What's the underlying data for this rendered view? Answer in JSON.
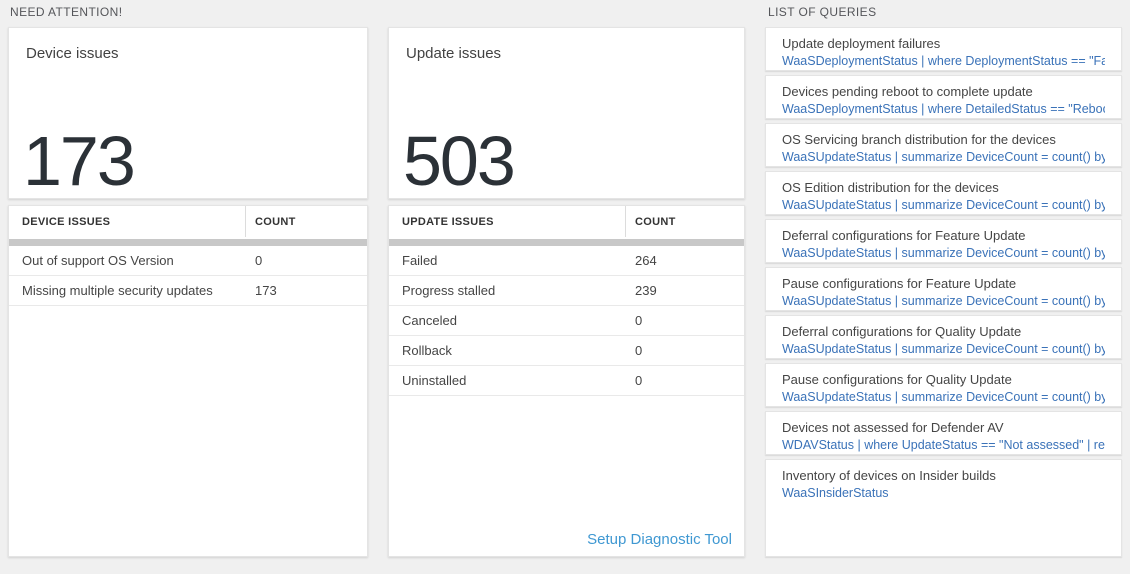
{
  "sections": {
    "need_attention": "NEED ATTENTION!",
    "list_of_queries": "LIST OF QUERIES"
  },
  "device_card": {
    "title": "Device issues",
    "count": "173"
  },
  "device_table": {
    "headers": [
      "DEVICE ISSUES",
      "COUNT"
    ],
    "rows": [
      {
        "label": "Out of support OS Version",
        "count": "0"
      },
      {
        "label": "Missing multiple security updates",
        "count": "173"
      }
    ]
  },
  "update_card": {
    "title": "Update issues",
    "count": "503"
  },
  "update_table": {
    "headers": [
      "UPDATE ISSUES",
      "COUNT"
    ],
    "rows": [
      {
        "label": "Failed",
        "count": "264"
      },
      {
        "label": "Progress stalled",
        "count": "239"
      },
      {
        "label": "Canceled",
        "count": "0"
      },
      {
        "label": "Rollback",
        "count": "0"
      },
      {
        "label": "Uninstalled",
        "count": "0"
      }
    ],
    "footer_link": "Setup Diagnostic Tool"
  },
  "queries": {
    "items": [
      {
        "title": "Update deployment failures",
        "query": "WaaSDeploymentStatus | where DeploymentStatus == \"Failed\" |..."
      },
      {
        "title": "Devices pending reboot to complete update",
        "query": "WaaSDeploymentStatus | where DetailedStatus == \"Reboot pend..."
      },
      {
        "title": "OS Servicing branch distribution for the devices",
        "query": "WaaSUpdateStatus | summarize DeviceCount = count() by OSSer..."
      },
      {
        "title": "OS Edition distribution for the devices",
        "query": "WaaSUpdateStatus | summarize DeviceCount = count() by OSEdit..."
      },
      {
        "title": "Deferral configurations for Feature Update",
        "query": "WaaSUpdateStatus | summarize DeviceCount = count() by Featur..."
      },
      {
        "title": "Pause configurations for Feature Update",
        "query": "WaaSUpdateStatus | summarize DeviceCount = count() by Featur..."
      },
      {
        "title": "Deferral configurations for Quality Update",
        "query": "WaaSUpdateStatus | summarize DeviceCount = count() by Qualit..."
      },
      {
        "title": "Pause configurations for Quality Update",
        "query": "WaaSUpdateStatus | summarize DeviceCount = count() by Qualit..."
      },
      {
        "title": "Devices not assessed for Defender AV",
        "query": "WDAVStatus | where UpdateStatus == \"Not assessed\" | render ta..."
      },
      {
        "title": "Inventory of devices on Insider builds",
        "query": "WaaSInsiderStatus"
      }
    ]
  },
  "colors": {
    "page_background": "#f0f0f0",
    "tile_background": "#ffffff",
    "big_number": "#2b3137",
    "query_link_blue": "#3a72b8",
    "action_link_blue": "#3f98d2",
    "scrollbar_gray": "#c8c8c8"
  }
}
